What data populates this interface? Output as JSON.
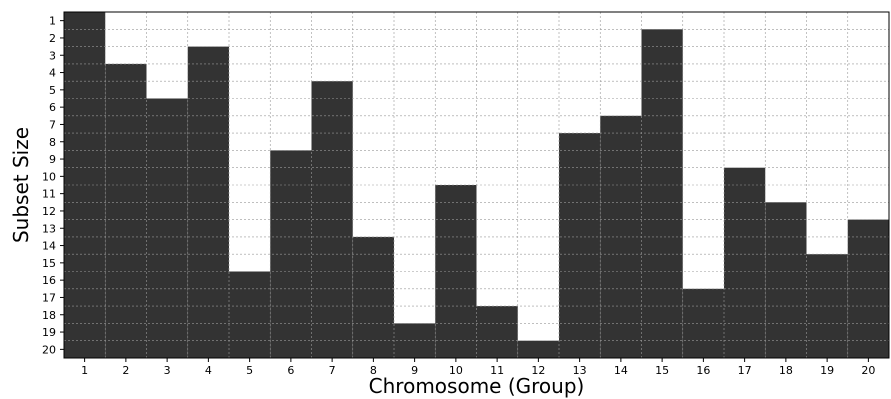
{
  "chart_data": {
    "type": "heatmap",
    "title": "",
    "xlabel": "Chromosome (Group)",
    "ylabel": "Subset Size",
    "x_categories": [
      "1",
      "2",
      "3",
      "4",
      "5",
      "6",
      "7",
      "8",
      "9",
      "10",
      "11",
      "12",
      "13",
      "14",
      "15",
      "16",
      "17",
      "18",
      "19",
      "20"
    ],
    "y_categories": [
      "1",
      "2",
      "3",
      "4",
      "5",
      "6",
      "7",
      "8",
      "9",
      "10",
      "11",
      "12",
      "13",
      "14",
      "15",
      "16",
      "17",
      "18",
      "19",
      "20"
    ],
    "filled_from_subset_size": [
      1,
      4,
      6,
      3,
      16,
      9,
      5,
      14,
      19,
      11,
      18,
      20,
      8,
      7,
      2,
      17,
      10,
      12,
      15,
      13
    ],
    "fill_color": "#333333",
    "empty_color": "#ffffff",
    "grid": true,
    "grid_style": "dashed"
  }
}
